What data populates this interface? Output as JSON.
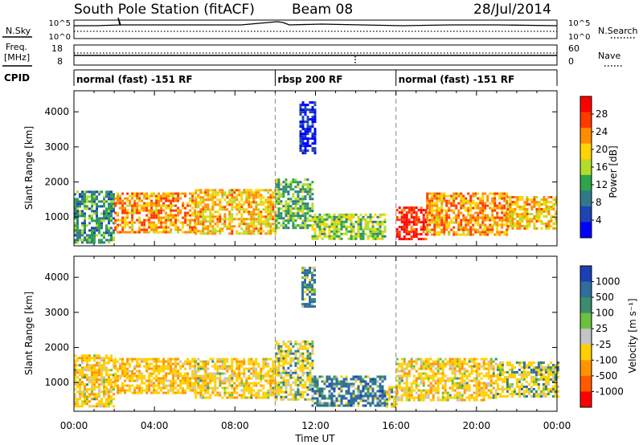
{
  "header": {
    "station": "South Pole Station (fitACF)",
    "beam": "Beam 08",
    "date": "28/Jul/2014"
  },
  "strips": {
    "nsky_label": "N.Sky",
    "nsearch_label": "N.Search",
    "noise_ticks": [
      "10^5",
      "10^0"
    ],
    "freq_label_1": "Freq.",
    "freq_label_2": "[MHz]",
    "freq_ticks": [
      "18",
      "8"
    ],
    "nave_label": "Nave",
    "nave_ticks": [
      "60",
      "0"
    ],
    "cpid_label": "CPID",
    "cpid_segments": [
      {
        "label": "normal (fast) -151 RF",
        "start_hour": 0,
        "end_hour": 10
      },
      {
        "label": "rbsp 200 RF",
        "start_hour": 10,
        "end_hour": 16
      },
      {
        "label": "normal (fast) -151 RF",
        "start_hour": 16,
        "end_hour": 24
      }
    ]
  },
  "power_colorbar": {
    "label": "Power [dB]",
    "ticks": [
      "28",
      "24",
      "20",
      "16",
      "12",
      "8",
      "4"
    ],
    "colors": [
      "#ff0000",
      "#ff3a00",
      "#ff8c00",
      "#ffd400",
      "#b2dd2a",
      "#2fa44a",
      "#2f7a8a",
      "#1e44b4",
      "#0000ff"
    ]
  },
  "velocity_colorbar": {
    "label": "Velocity [m s⁻¹]",
    "ticks": [
      "1000",
      "500",
      "100",
      "25",
      "-25",
      "-100",
      "-500",
      "-1000"
    ],
    "colors": [
      "#1c3fb4",
      "#2f6e9c",
      "#3c8c6e",
      "#6cc040",
      "#c4c4c4",
      "#ffd000",
      "#ff9400",
      "#ff5a00",
      "#ff0000"
    ]
  },
  "axes": {
    "ylabel": "Slant Range [km]",
    "xlabel": "Time UT",
    "yticks": [
      "1000",
      "2000",
      "3000",
      "4000"
    ],
    "xticks": [
      "00:00",
      "04:00",
      "08:00",
      "12:00",
      "16:00",
      "20:00",
      "00:00"
    ]
  },
  "chart_data": [
    {
      "type": "heatmap",
      "title": "",
      "xlabel": "",
      "ylabel": "Slant Range [km]",
      "x_unit": "hours UT",
      "xlim": [
        0,
        24
      ],
      "ylim": [
        180,
        4600
      ],
      "colorbar_label": "Power [dB]",
      "value_range": [
        3,
        30
      ],
      "regions": [
        {
          "t0": 0.0,
          "t1": 2.0,
          "r0": 300,
          "r1": 1750,
          "value": 12
        },
        {
          "t0": 2.0,
          "t1": 6.0,
          "r0": 600,
          "r1": 1700,
          "value": 22
        },
        {
          "t0": 6.0,
          "t1": 10.0,
          "r0": 500,
          "r1": 1800,
          "value": 20
        },
        {
          "t0": 10.0,
          "t1": 11.8,
          "r0": 700,
          "r1": 2100,
          "value": 14
        },
        {
          "t0": 11.8,
          "t1": 15.5,
          "r0": 350,
          "r1": 1100,
          "value": 16
        },
        {
          "t0": 16.0,
          "t1": 17.5,
          "r0": 400,
          "r1": 1300,
          "value": 28
        },
        {
          "t0": 17.5,
          "t1": 21.5,
          "r0": 500,
          "r1": 1700,
          "value": 22
        },
        {
          "t0": 21.5,
          "t1": 24.0,
          "r0": 700,
          "r1": 1600,
          "value": 20
        },
        {
          "t0": 11.2,
          "t1": 12.0,
          "r0": 2800,
          "r1": 4300,
          "value": 5
        }
      ]
    },
    {
      "type": "heatmap",
      "title": "",
      "xlabel": "Time UT",
      "ylabel": "Slant Range [km]",
      "x_unit": "hours UT",
      "xlim": [
        0,
        24
      ],
      "ylim": [
        180,
        4600
      ],
      "colorbar_label": "Velocity [m s⁻¹]",
      "value_range": [
        -1000,
        1000
      ],
      "regions": [
        {
          "t0": 0.0,
          "t1": 2.0,
          "r0": 350,
          "r1": 1800,
          "value": -300
        },
        {
          "t0": 2.0,
          "t1": 6.0,
          "r0": 700,
          "r1": 1700,
          "value": -400
        },
        {
          "t0": 6.0,
          "t1": 10.0,
          "r0": 600,
          "r1": 1700,
          "value": -300
        },
        {
          "t0": 10.0,
          "t1": 11.8,
          "r0": 500,
          "r1": 2200,
          "value": -150
        },
        {
          "t0": 11.8,
          "t1": 15.5,
          "r0": 350,
          "r1": 1200,
          "value": 200
        },
        {
          "t0": 15.5,
          "t1": 16.0,
          "r0": 300,
          "r1": 900,
          "value": -200
        },
        {
          "t0": 16.0,
          "t1": 21.0,
          "r0": 500,
          "r1": 1700,
          "value": -300
        },
        {
          "t0": 21.0,
          "t1": 24.0,
          "r0": 600,
          "r1": 1600,
          "value": -150
        },
        {
          "t0": 11.3,
          "t1": 11.9,
          "r0": 3200,
          "r1": 4300,
          "value": 150
        }
      ]
    }
  ]
}
